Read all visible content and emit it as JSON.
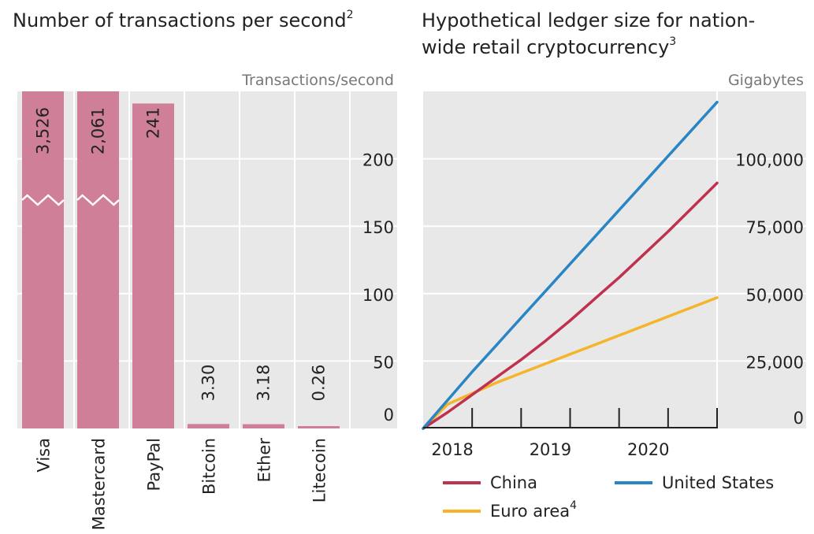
{
  "chart_data": [
    {
      "type": "bar",
      "title": "Number of transactions per second",
      "title_footnote": "2",
      "unit_label": "Transactions/second",
      "categories": [
        "Visa",
        "Mastercard",
        "PayPal",
        "Bitcoin",
        "Ether",
        "Litecoin"
      ],
      "values": [
        3526,
        2061,
        241,
        3.3,
        3.18,
        0.26
      ],
      "value_labels": [
        "3,526",
        "2,061",
        "241",
        "3.30",
        "3.18",
        "0.26"
      ],
      "axis_breaks": [
        true,
        true,
        false,
        false,
        false,
        false
      ],
      "yticks": [
        0,
        50,
        100,
        150,
        200
      ],
      "ytick_labels": [
        "0",
        "50",
        "100",
        "150",
        "200"
      ],
      "ylim": [
        0,
        250
      ],
      "yaxis_side": "right",
      "bar_color": "#cf7f98",
      "background": "#e8e8e8",
      "grid_color": "#ffffff"
    },
    {
      "type": "line",
      "title_lines": [
        "Hypothetical ledger size for nation-",
        "wide retail cryptocurrency"
      ],
      "title_footnote": "3",
      "unit_label": "Gigabytes",
      "xlim": [
        2017.75,
        2020.75
      ],
      "xticks": [
        2018,
        2019,
        2020
      ],
      "xtick_labels": [
        "2018",
        "2019",
        "2020"
      ],
      "xtick_marks": [
        2018.25,
        2018.75,
        2019.25,
        2019.75,
        2020.25,
        2020.75
      ],
      "yticks": [
        0,
        25000,
        50000,
        75000,
        100000
      ],
      "ytick_labels": [
        "0",
        "25,000",
        "50,000",
        "75,000",
        "100,000"
      ],
      "ylim": [
        0,
        125000
      ],
      "yaxis_side": "right",
      "background": "#e8e8e8",
      "series": [
        {
          "name": "China",
          "footnote": "",
          "color": "#c0304f",
          "x": [
            2017.75,
            2018.0,
            2018.25,
            2018.5,
            2018.75,
            2019.0,
            2019.25,
            2019.5,
            2019.75,
            2020.0,
            2020.25,
            2020.5,
            2020.75
          ],
          "y": [
            0,
            6000,
            12500,
            19000,
            25500,
            32500,
            40000,
            48000,
            56000,
            64500,
            73000,
            82000,
            91000
          ]
        },
        {
          "name": "Euro area",
          "footnote": "4",
          "color": "#f5b42a",
          "x": [
            2017.75,
            2018.0,
            2018.25,
            2018.5,
            2018.75,
            2019.0,
            2019.25,
            2019.5,
            2019.75,
            2020.0,
            2020.25,
            2020.5,
            2020.75
          ],
          "y": [
            0,
            9000,
            13000,
            17000,
            20500,
            24000,
            27500,
            31000,
            34500,
            38000,
            41500,
            45000,
            48500
          ]
        },
        {
          "name": "United States",
          "footnote": "",
          "color": "#2a85c4",
          "x": [
            2017.75,
            2018.0,
            2018.25,
            2018.5,
            2018.75,
            2019.0,
            2019.25,
            2019.5,
            2019.75,
            2020.0,
            2020.25,
            2020.5,
            2020.75
          ],
          "y": [
            0,
            10500,
            21000,
            31000,
            41000,
            51000,
            61000,
            71000,
            81000,
            91000,
            101000,
            111000,
            121000
          ]
        }
      ],
      "legend_order": [
        "China",
        "United States",
        "Euro area"
      ]
    }
  ]
}
